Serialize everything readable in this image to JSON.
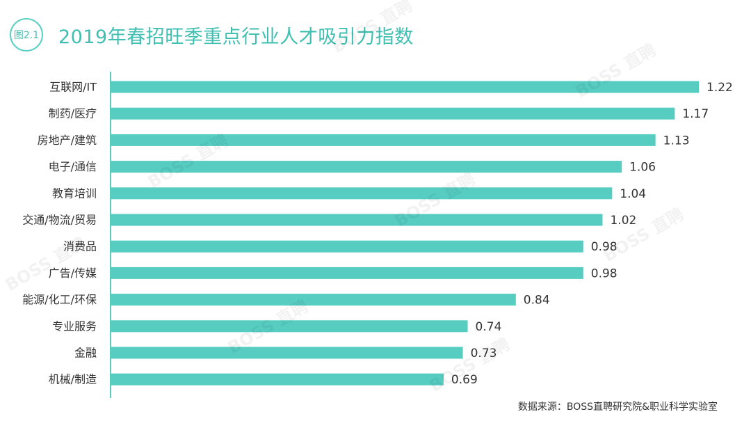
{
  "header": {
    "badge": "图2.1",
    "title": "2019年春招旺季重点行业人才吸引力指数"
  },
  "source": "数据来源：BOSS直聘研究院&职业科学实验室",
  "watermark": "BOSS 直聘",
  "colors": {
    "bar": "#57cdc2",
    "accent": "#3fbfb1",
    "axis": "#57cdc2",
    "text": "#333333"
  },
  "chart_data": {
    "type": "bar",
    "orientation": "horizontal",
    "categories": [
      "互联网/IT",
      "制药/医疗",
      "房地产/建筑",
      "电子/通信",
      "教育培训",
      "交通/物流/贸易",
      "消费品",
      "广告/传媒",
      "能源/化工/环保",
      "专业服务",
      "金融",
      "机械/制造"
    ],
    "values": [
      1.22,
      1.17,
      1.13,
      1.06,
      1.04,
      1.02,
      0.98,
      0.98,
      0.84,
      0.74,
      0.73,
      0.69
    ],
    "value_labels": [
      "1.22",
      "1.17",
      "1.13",
      "1.06",
      "1.04",
      "1.02",
      "0.98",
      "0.98",
      "0.84",
      "0.74",
      "0.73",
      "0.69"
    ],
    "xlim": [
      0,
      1.22
    ],
    "grid": false,
    "legend": "none"
  }
}
